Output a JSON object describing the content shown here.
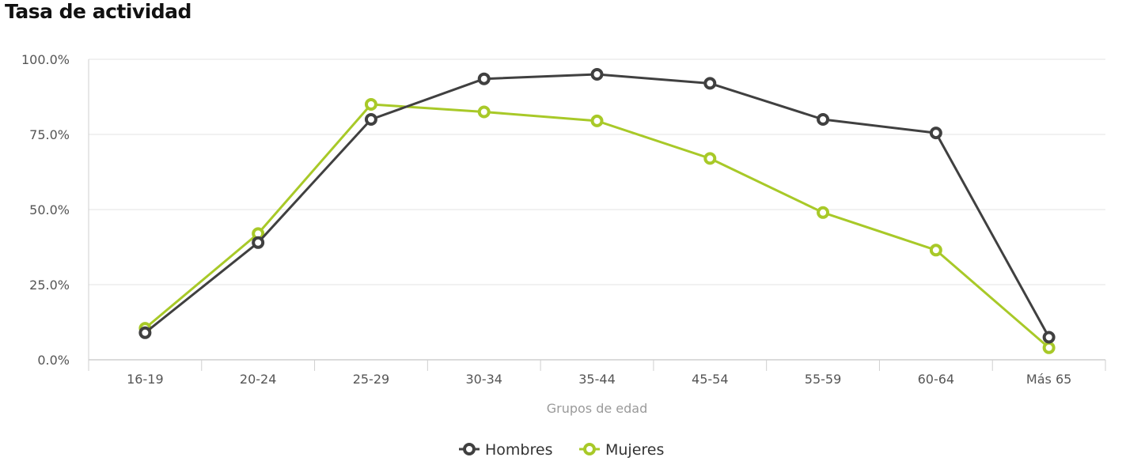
{
  "chart_data": {
    "type": "line",
    "title": "Tasa de actividad",
    "xlabel": "Grupos de edad",
    "ylabel": "",
    "categories": [
      "16-19",
      "20-24",
      "25-29",
      "30-34",
      "35-44",
      "45-54",
      "55-59",
      "60-64",
      "Más 65"
    ],
    "yticks": [
      "0.0%",
      "25.0%",
      "50.0%",
      "75.0%",
      "100.0%"
    ],
    "ylim": [
      0,
      100
    ],
    "grid": true,
    "legend_position": "bottom-center",
    "series": [
      {
        "name": "Hombres",
        "color": "#404040",
        "values": [
          9.0,
          39.0,
          80.0,
          93.5,
          95.0,
          92.0,
          80.0,
          75.5,
          7.5
        ]
      },
      {
        "name": "Mujeres",
        "color": "#a8c928",
        "values": [
          10.5,
          42.0,
          85.0,
          82.5,
          79.5,
          67.0,
          49.0,
          36.5,
          4.0
        ]
      }
    ]
  }
}
